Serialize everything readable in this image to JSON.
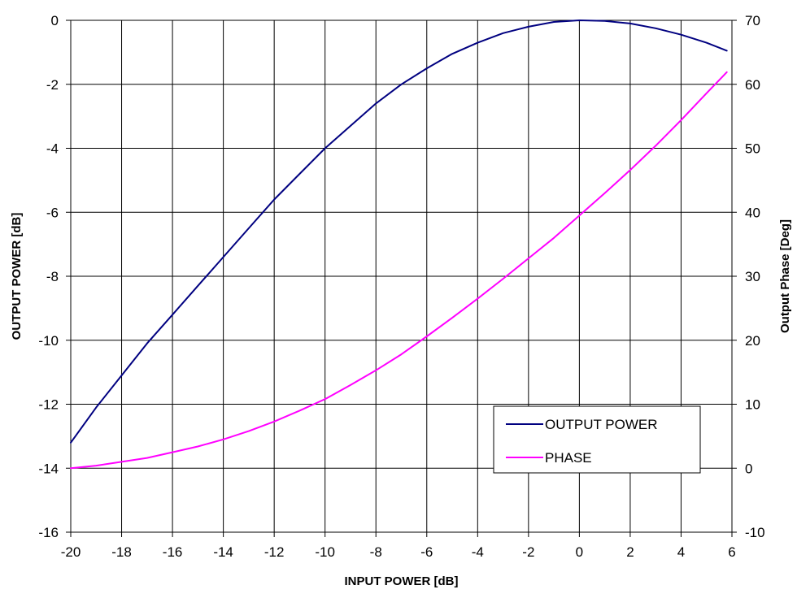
{
  "chart_data": {
    "type": "line",
    "xlabel": "INPUT POWER [dB]",
    "ylabel": "OUTPUT POWER [dB]",
    "y2label": "Output Phase [Deg]",
    "xlim": [
      -20,
      6
    ],
    "ylim": [
      -16,
      0
    ],
    "y2lim": [
      -10,
      70
    ],
    "x_ticks": [
      -20,
      -18,
      -16,
      -14,
      -12,
      -10,
      -8,
      -6,
      -4,
      -2,
      0,
      2,
      4,
      6
    ],
    "y_ticks": [
      0,
      -2,
      -4,
      -6,
      -8,
      -10,
      -12,
      -14,
      -16
    ],
    "y2_ticks": [
      70,
      60,
      50,
      40,
      30,
      20,
      10,
      0,
      -10
    ],
    "grid": true,
    "legend_position": "bottom-right",
    "series": [
      {
        "name": "OUTPUT POWER",
        "axis": "left",
        "color": "#000080",
        "x": [
          -20,
          -19,
          -18,
          -17,
          -16,
          -15,
          -14,
          -13,
          -12,
          -11,
          -10,
          -9,
          -8,
          -7,
          -6,
          -5,
          -4,
          -3,
          -2,
          -1,
          0,
          1,
          2,
          3,
          4,
          5,
          5.8
        ],
        "y": [
          -13.2,
          -12.1,
          -11.1,
          -10.1,
          -9.2,
          -8.3,
          -7.4,
          -6.5,
          -5.6,
          -4.8,
          -4.0,
          -3.3,
          -2.6,
          -2.0,
          -1.5,
          -1.05,
          -0.7,
          -0.4,
          -0.2,
          -0.05,
          0.0,
          -0.02,
          -0.1,
          -0.25,
          -0.45,
          -0.7,
          -0.95
        ]
      },
      {
        "name": "PHASE",
        "axis": "right",
        "color": "#FF00FF",
        "x": [
          -20,
          -19,
          -18,
          -17,
          -16,
          -15,
          -14,
          -13,
          -12,
          -11,
          -10,
          -9,
          -8,
          -7,
          -6,
          -5,
          -4,
          -3,
          -2,
          -1,
          0,
          1,
          2,
          3,
          4,
          5,
          5.8
        ],
        "y": [
          0.0,
          0.4,
          1.0,
          1.6,
          2.5,
          3.4,
          4.5,
          5.8,
          7.3,
          9.0,
          10.8,
          13.0,
          15.3,
          17.8,
          20.6,
          23.5,
          26.5,
          29.6,
          32.8,
          36.0,
          39.5,
          43.0,
          46.6,
          50.4,
          54.4,
          58.6,
          61.9
        ]
      }
    ]
  }
}
